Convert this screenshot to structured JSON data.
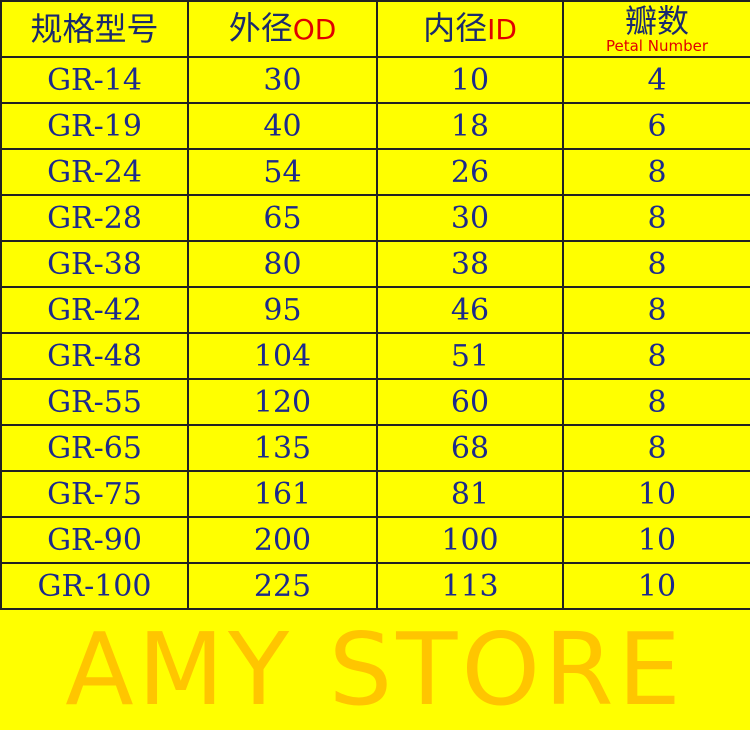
{
  "header": {
    "model": "规格型号",
    "od_cn": "外径",
    "od_en": "OD",
    "id_cn": "内径",
    "id_en": "ID",
    "petal_cn": "瓣数",
    "petal_en": "Petal Number"
  },
  "rows": [
    [
      "GR-14",
      "30",
      "10",
      "4"
    ],
    [
      "GR-19",
      "40",
      "18",
      "6"
    ],
    [
      "GR-24",
      "54",
      "26",
      "8"
    ],
    [
      "GR-28",
      "65",
      "30",
      "8"
    ],
    [
      "GR-38",
      "80",
      "38",
      "8"
    ],
    [
      "GR-42",
      "95",
      "46",
      "8"
    ],
    [
      "GR-48",
      "104",
      "51",
      "8"
    ],
    [
      "GR-55",
      "120",
      "60",
      "8"
    ],
    [
      "GR-65",
      "135",
      "68",
      "8"
    ],
    [
      "GR-75",
      "161",
      "81",
      "10"
    ],
    [
      "GR-90",
      "200",
      "100",
      "10"
    ],
    [
      "GR-100",
      "225",
      "113",
      "10"
    ]
  ],
  "watermark": "AMY STORE",
  "colors": {
    "background": "#ffff00",
    "text": "#1c2a8c",
    "accent": "#e00000",
    "watermark": "#ff9600"
  }
}
